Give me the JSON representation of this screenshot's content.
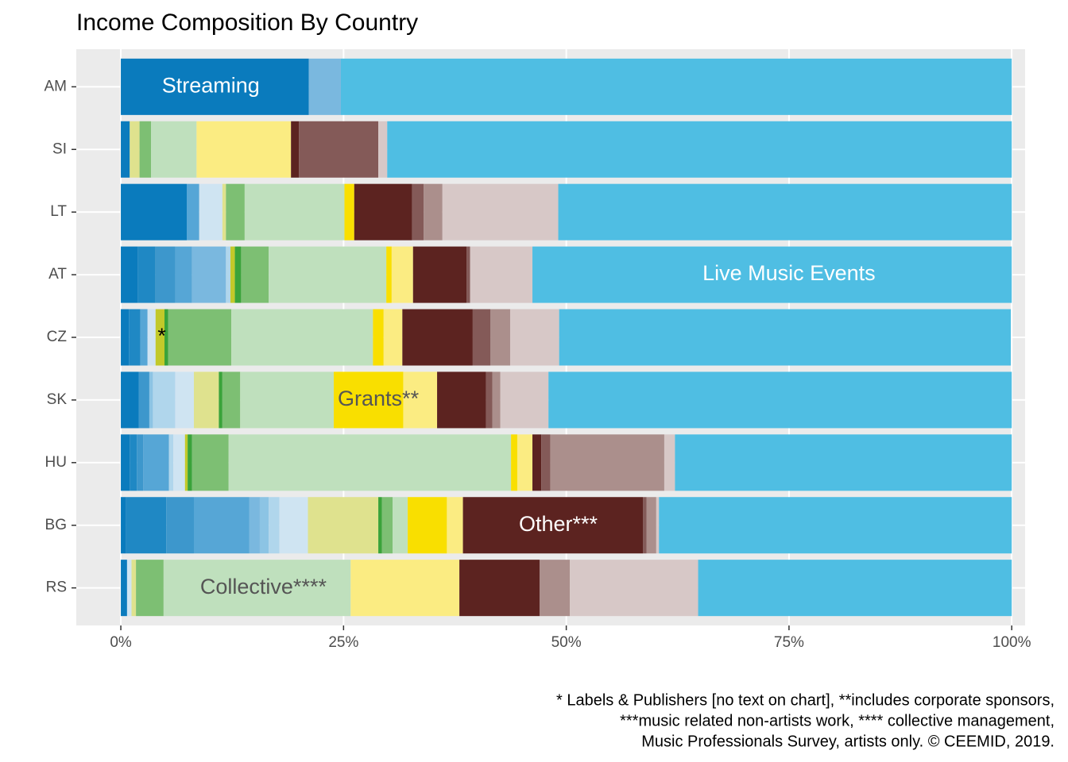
{
  "chart_data": {
    "type": "stacked-barh",
    "title": "Income Composition By Country",
    "categories": [
      "AM",
      "SI",
      "LT",
      "AT",
      "CZ",
      "SK",
      "HU",
      "BG",
      "RS"
    ],
    "series": [
      {
        "color": "#0a7bbd",
        "values": [
          21.1,
          1.0,
          7.4,
          1.9,
          0.9,
          2.0,
          1.0,
          0.6,
          0.7
        ]
      },
      {
        "color": "#1f88c4",
        "values": [
          0,
          0,
          0,
          2.0,
          1.3,
          0,
          0.8,
          4.5,
          0
        ]
      },
      {
        "color": "#3d97cc",
        "values": [
          0,
          0,
          0,
          2.2,
          0,
          1.2,
          0.7,
          3.1,
          0
        ]
      },
      {
        "color": "#56a6d6",
        "values": [
          0,
          0,
          1.4,
          1.9,
          0.8,
          0,
          2.9,
          6.2,
          0
        ]
      },
      {
        "color": "#7ab8df",
        "values": [
          3.6,
          0,
          0,
          3.8,
          0,
          0,
          0,
          1.2,
          0
        ]
      },
      {
        "color": "#8cc4e4",
        "values": [
          0,
          0,
          0,
          0,
          0,
          0.4,
          0,
          1.0,
          0
        ]
      },
      {
        "color": "#b0d6ec",
        "values": [
          0,
          0,
          0,
          0.5,
          0,
          2.5,
          0.5,
          1.2,
          0
        ]
      },
      {
        "color": "#cfe4f2",
        "values": [
          0,
          0,
          2.6,
          0,
          0.9,
          2.1,
          1.3,
          3.2,
          0.5
        ]
      },
      {
        "color": "#c2c92a",
        "values": [
          0,
          0,
          0,
          0.5,
          1.0,
          0,
          0.3,
          0,
          0
        ]
      },
      {
        "color": "#dfe28e",
        "values": [
          0,
          1.1,
          0.4,
          0,
          0,
          2.8,
          0,
          7.9,
          0.5
        ]
      },
      {
        "color": "#3aa33a",
        "values": [
          0,
          0,
          0,
          0.7,
          0.4,
          0.4,
          0.5,
          0.4,
          0
        ]
      },
      {
        "color": "#7dbf73",
        "values": [
          0,
          1.3,
          2.1,
          3.1,
          7.1,
          2.0,
          4.1,
          1.2,
          3.1
        ]
      },
      {
        "color": "#bfe0bd",
        "values": [
          0,
          5.1,
          11.2,
          13.2,
          15.9,
          10.5,
          31.7,
          1.7,
          21.0
        ]
      },
      {
        "color": "#f9df00",
        "values": [
          0,
          0,
          1.1,
          0.6,
          1.2,
          7.8,
          0.7,
          4.4,
          0
        ]
      },
      {
        "color": "#fbec82",
        "values": [
          0,
          10.6,
          0,
          2.4,
          2.1,
          3.8,
          1.7,
          1.8,
          12.2
        ]
      },
      {
        "color": "#5c2320",
        "values": [
          0,
          0.9,
          6.5,
          6.0,
          7.9,
          5.5,
          1.0,
          20.2,
          9.0
        ]
      },
      {
        "color": "#845a58",
        "values": [
          0,
          8.9,
          1.3,
          0.4,
          2.0,
          0.7,
          1.0,
          0.4,
          0
        ]
      },
      {
        "color": "#ab8f8c",
        "values": [
          0,
          0,
          2.1,
          0,
          2.2,
          0.9,
          12.8,
          1.1,
          3.4
        ]
      },
      {
        "color": "#d7c8c7",
        "values": [
          0,
          1.0,
          13.0,
          7.0,
          5.5,
          5.4,
          1.2,
          0.3,
          14.4
        ]
      },
      {
        "color": "#4fbee3",
        "values": [
          75.3,
          70.1,
          50.9,
          53.8,
          50.7,
          52.0,
          37.8,
          39.6,
          35.2
        ]
      }
    ],
    "annotations": [
      {
        "text": "Streaming",
        "category": "AM",
        "x": 10.1,
        "color": "#ffffff"
      },
      {
        "text": "Live Music Events",
        "category": "AT",
        "x": 75.0,
        "color": "#ffffff"
      },
      {
        "text": "*",
        "category": "CZ",
        "x": 4.6,
        "color": "#000000"
      },
      {
        "text": "Grants**",
        "category": "SK",
        "x": 28.9,
        "color": "#555555"
      },
      {
        "text": "Other***",
        "category": "BG",
        "x": 49.1,
        "color": "#ffffff"
      },
      {
        "text": "Collective****",
        "category": "RS",
        "x": 16.0,
        "color": "#555555"
      }
    ],
    "xlim": [
      -5,
      101.5
    ],
    "xticks": [
      {
        "value": 0,
        "label": "0%"
      },
      {
        "value": 25,
        "label": "25%"
      },
      {
        "value": 50,
        "label": "50%"
      },
      {
        "value": 75,
        "label": "75%"
      },
      {
        "value": 100,
        "label": "100%"
      }
    ],
    "grid": true,
    "caption": [
      "* Labels & Publishers [no text on chart], **includes corporate sponsors,",
      "***music related non-artists work, **** collective management,",
      "Music Professionals Survey, artists only. © CEEMID, 2019."
    ]
  }
}
